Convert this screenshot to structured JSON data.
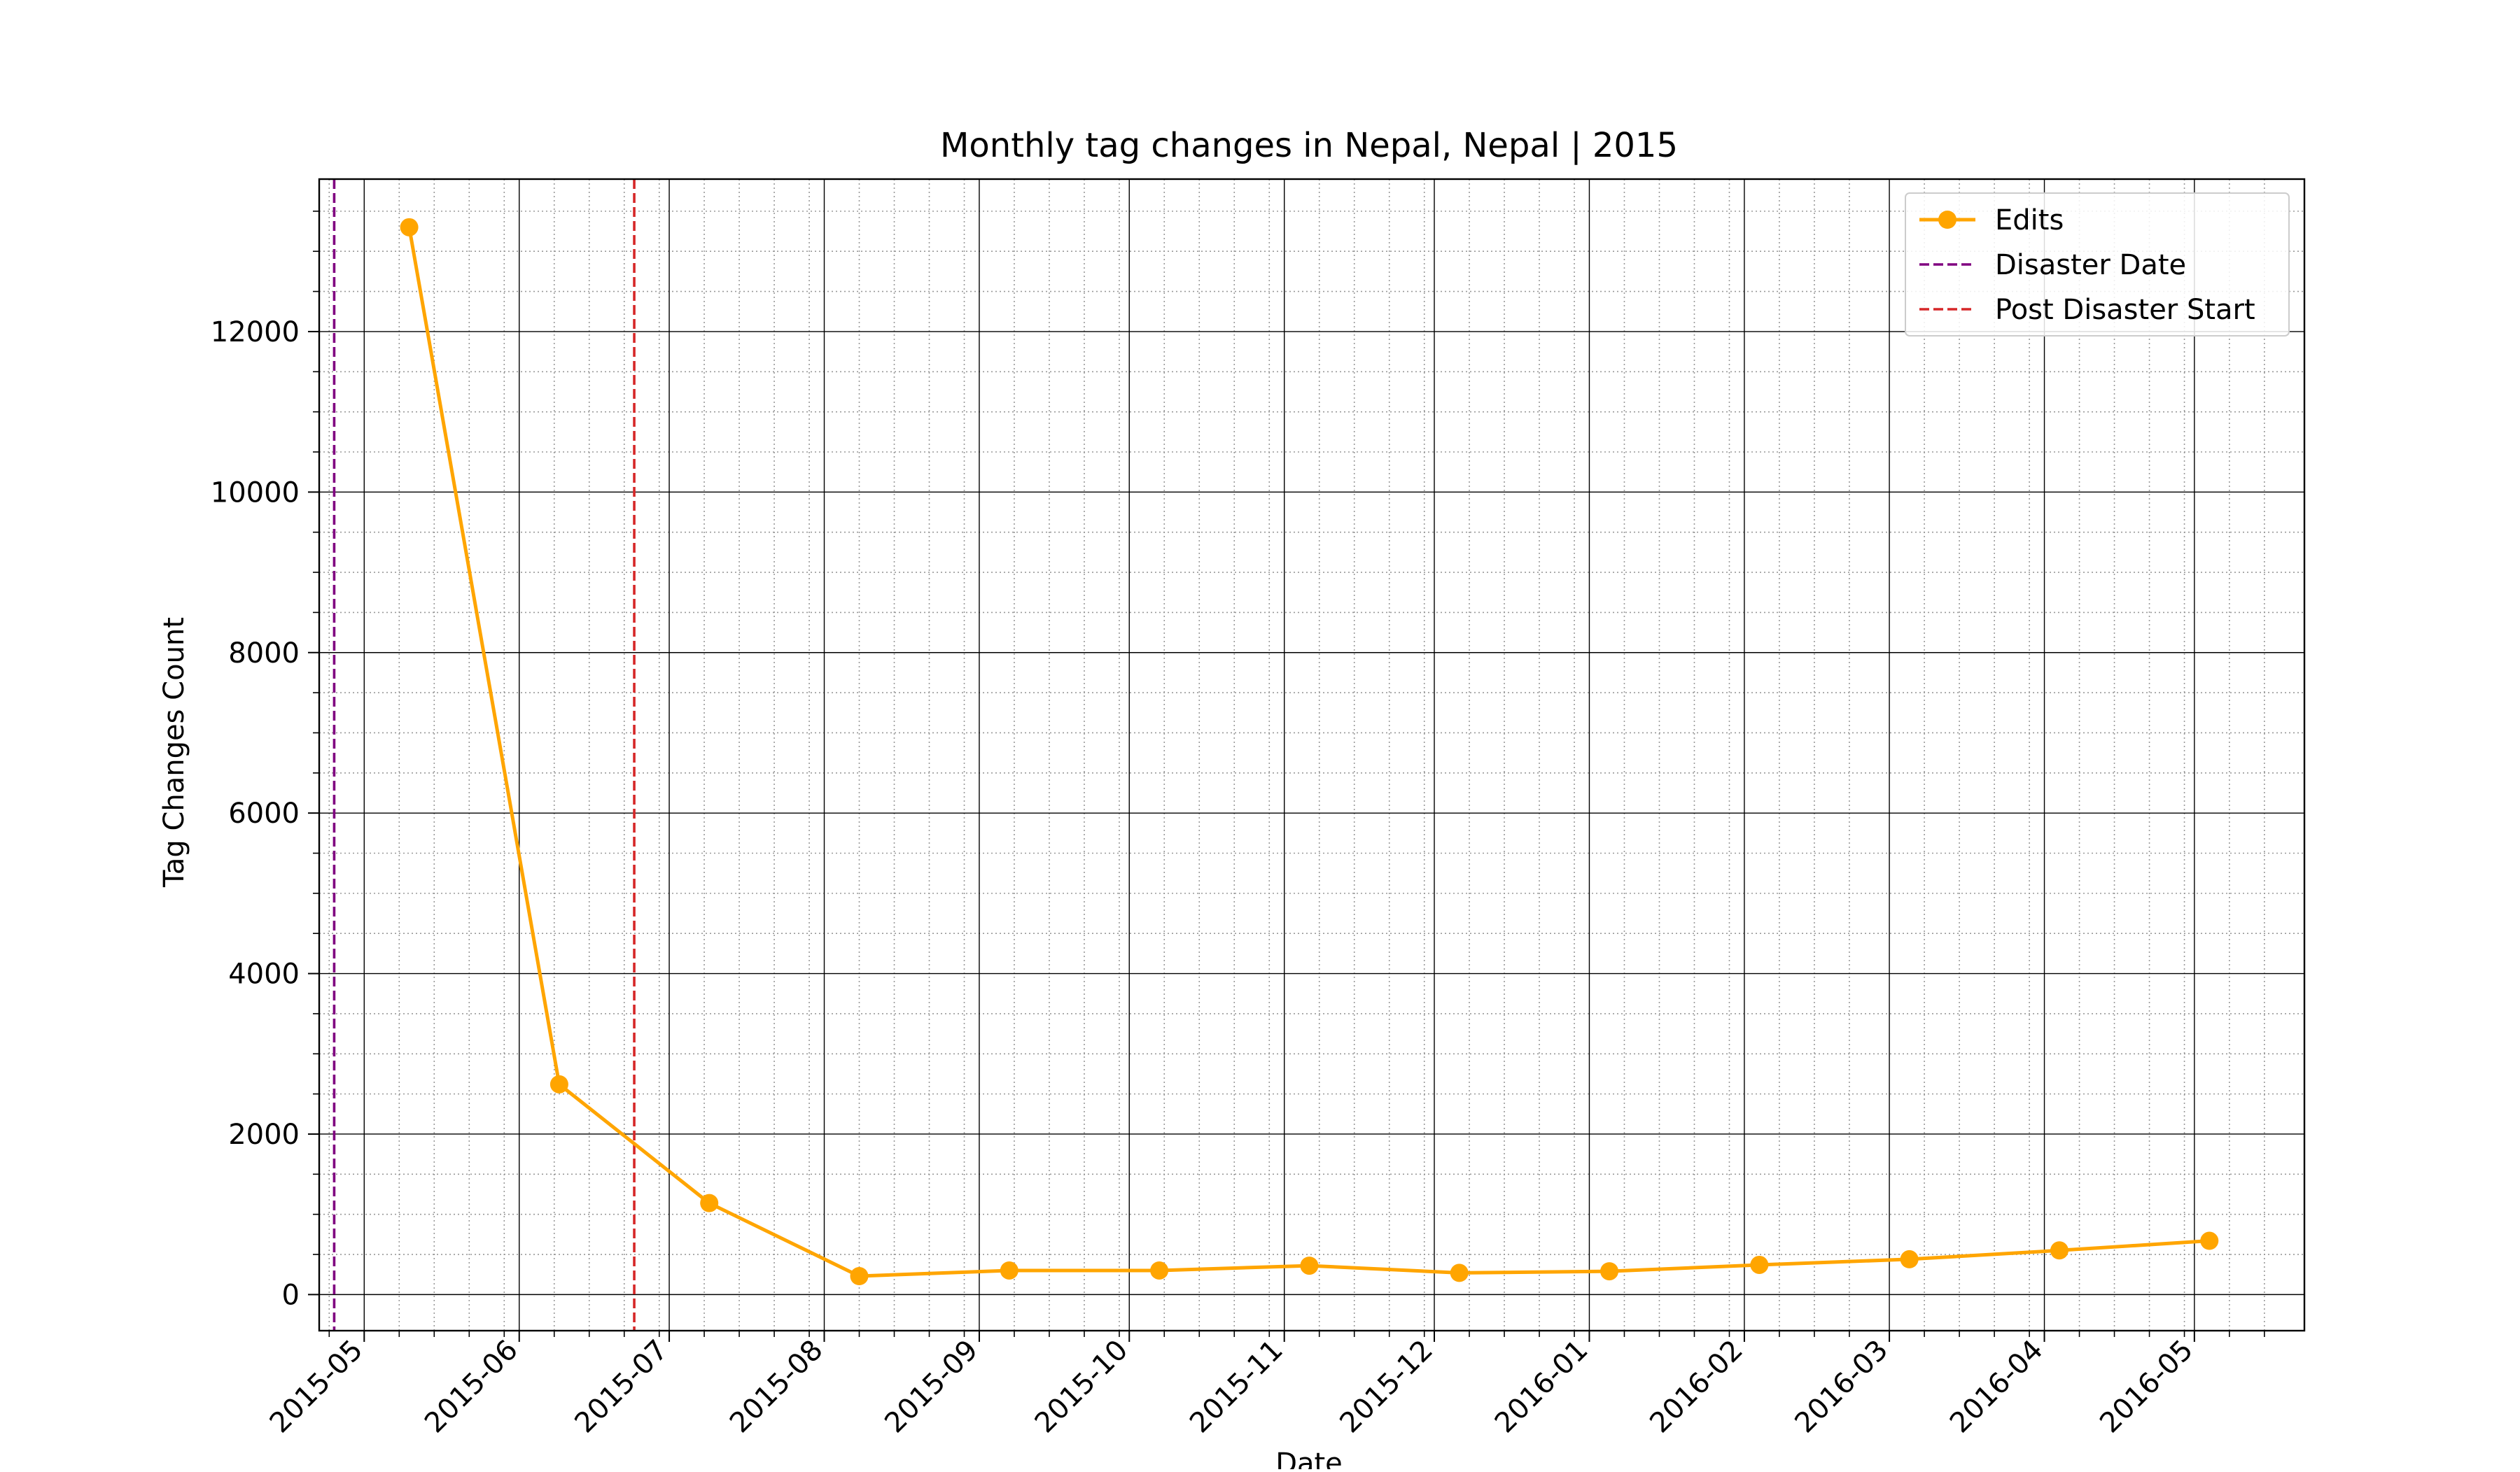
{
  "chart_data": {
    "type": "line",
    "title": "Monthly tag changes in Nepal, Nepal | 2015",
    "xlabel": "Date",
    "ylabel": "Tag Changes Count",
    "x_type": "date",
    "xlim": [
      "2015-04-22",
      "2016-05-23"
    ],
    "ylim": [
      -450,
      13900
    ],
    "x_ticks": [
      "2015-05-01",
      "2015-06-01",
      "2015-07-01",
      "2015-08-01",
      "2015-09-01",
      "2015-10-01",
      "2015-11-01",
      "2015-12-01",
      "2016-01-01",
      "2016-02-01",
      "2016-03-01",
      "2016-04-01",
      "2016-05-01"
    ],
    "x_tick_labels": [
      "2015-05",
      "2015-06",
      "2015-07",
      "2015-08",
      "2015-09",
      "2015-10",
      "2015-11",
      "2015-12",
      "2016-01",
      "2016-02",
      "2016-03",
      "2016-04",
      "2016-05"
    ],
    "y_ticks": [
      0,
      2000,
      4000,
      6000,
      8000,
      10000,
      12000
    ],
    "y_tick_labels": [
      "0",
      "2000",
      "4000",
      "6000",
      "8000",
      "10000",
      "12000"
    ],
    "grid": "major solid, minor dotted",
    "legend_position": "top-right",
    "series": [
      {
        "name": "Edits",
        "color": "#FFA500",
        "marker": "circle",
        "x": [
          "2015-05-10",
          "2015-06-09",
          "2015-07-09",
          "2015-08-08",
          "2015-09-07",
          "2015-10-07",
          "2015-11-06",
          "2015-12-06",
          "2016-01-05",
          "2016-02-04",
          "2016-03-05",
          "2016-04-04",
          "2016-05-04"
        ],
        "y": [
          13300,
          2620,
          1140,
          230,
          300,
          300,
          360,
          270,
          290,
          370,
          440,
          550,
          670
        ]
      }
    ],
    "vlines": [
      {
        "name": "Disaster Date",
        "x": "2015-04-25",
        "color": "#800080",
        "style": "dashed"
      },
      {
        "name": "Post Disaster Start",
        "x": "2015-06-24",
        "color": "#D62728",
        "style": "dashed"
      }
    ]
  }
}
